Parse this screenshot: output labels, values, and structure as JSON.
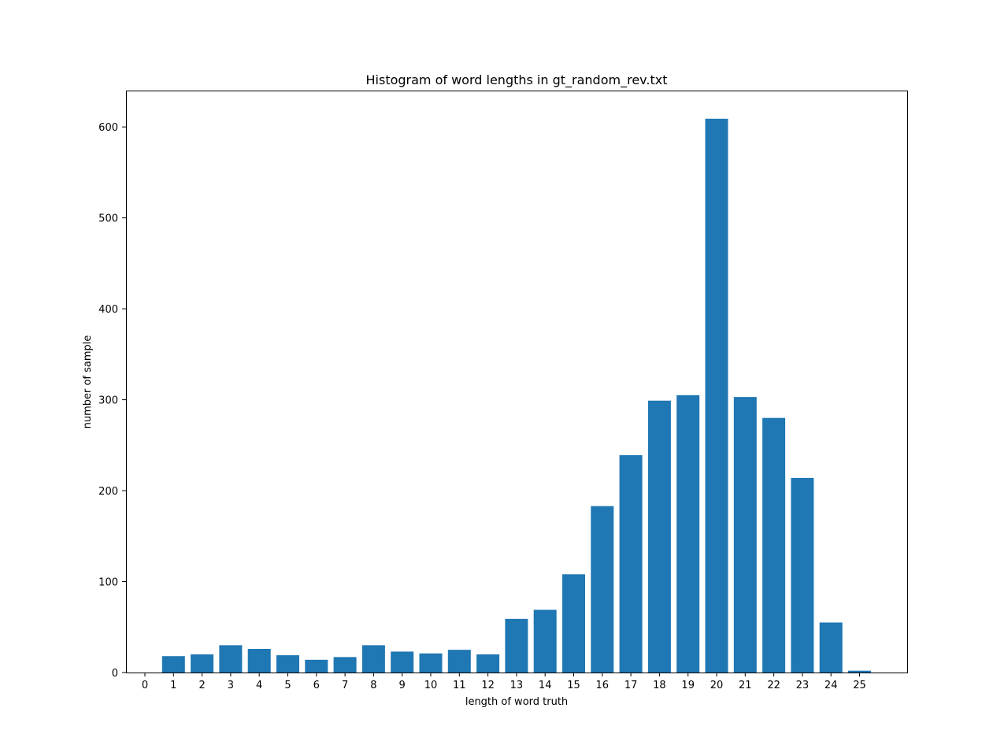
{
  "chart_data": {
    "type": "bar",
    "title": "Histogram of word lengths in gt_random_rev.txt",
    "xlabel": "length of word truth",
    "ylabel": "number of sample",
    "categories": [
      "0",
      "1",
      "2",
      "3",
      "4",
      "5",
      "6",
      "7",
      "8",
      "9",
      "10",
      "11",
      "12",
      "13",
      "14",
      "15",
      "16",
      "17",
      "18",
      "19",
      "20",
      "21",
      "22",
      "23",
      "24",
      "25"
    ],
    "values": [
      0,
      18,
      20,
      30,
      26,
      19,
      14,
      17,
      30,
      23,
      21,
      25,
      20,
      59,
      69,
      108,
      183,
      239,
      299,
      305,
      609,
      303,
      280,
      214,
      55,
      2
    ],
    "ylim": [
      0,
      640
    ],
    "yticks": [
      0,
      100,
      200,
      300,
      400,
      500,
      600
    ],
    "bar_color": "#1f77b4",
    "grid": false,
    "legend": null
  }
}
